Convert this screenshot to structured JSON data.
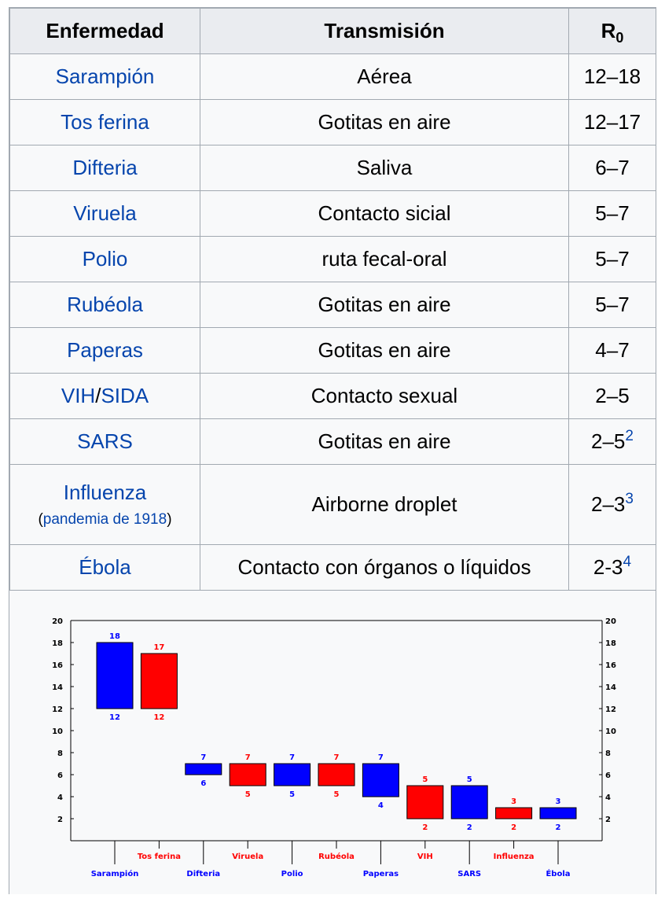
{
  "table": {
    "headers": {
      "disease": "Enfermedad",
      "transmission": "Transmisión",
      "r0_main": "R",
      "r0_sub": "0"
    },
    "rows": [
      {
        "disease": "Sarampión",
        "transmission": "Aérea",
        "r0": "12–18",
        "ref": ""
      },
      {
        "disease": "Tos ferina",
        "transmission": "Gotitas en aire",
        "r0": "12–17",
        "ref": ""
      },
      {
        "disease": "Difteria",
        "transmission": "Saliva",
        "r0": "6–7",
        "ref": ""
      },
      {
        "disease": "Viruela",
        "transmission": "Contacto sicial",
        "r0": "5–7",
        "ref": ""
      },
      {
        "disease": "Polio",
        "transmission": "ruta fecal-oral",
        "r0": "5–7",
        "ref": ""
      },
      {
        "disease": "Rubéola",
        "transmission": "Gotitas en aire",
        "r0": "5–7",
        "ref": ""
      },
      {
        "disease": "Paperas",
        "transmission": "Gotitas en aire",
        "r0": "4–7",
        "ref": ""
      },
      {
        "disease_part1": "VIH",
        "disease_sep": "/",
        "disease_part2": "SIDA",
        "transmission": "Contacto sexual",
        "r0": "2–5",
        "ref": ""
      },
      {
        "disease": "SARS",
        "transmission": "Gotitas en aire",
        "r0": "2–5",
        "ref": "2"
      },
      {
        "disease": "Influenza",
        "open": "(",
        "note": "pandemia de 1918",
        "close": ")",
        "transmission": "Airborne droplet",
        "r0": "2–3",
        "ref": "3"
      },
      {
        "disease": "Ébola",
        "transmission": "Contacto con órganos o líquidos",
        "r0": "2-3",
        "ref": "4"
      }
    ]
  },
  "chart_data": {
    "type": "bar",
    "title": "",
    "xlabel": "",
    "ylabel": "",
    "ylim": [
      0,
      20
    ],
    "yticks": [
      "2",
      "4",
      "6",
      "8",
      "10",
      "12",
      "14",
      "16",
      "18",
      "20"
    ],
    "grid": false,
    "colors": {
      "blue": "#0000ff",
      "red": "#ff0000",
      "axis": "#000000"
    },
    "bars": [
      {
        "category": "Sarampión",
        "low": 12,
        "high": 18,
        "color": "blue",
        "low_label": "12",
        "high_label": "18"
      },
      {
        "category": "Tos ferina",
        "low": 12,
        "high": 17,
        "color": "red",
        "low_label": "12",
        "high_label": "17"
      },
      {
        "category": "Difteria",
        "low": 6,
        "high": 7,
        "color": "blue",
        "low_label": "6",
        "high_label": "7"
      },
      {
        "category": "Viruela",
        "low": 5,
        "high": 7,
        "color": "red",
        "low_label": "5",
        "high_label": "7"
      },
      {
        "category": "Polio",
        "low": 5,
        "high": 7,
        "color": "blue",
        "low_label": "5",
        "high_label": "7"
      },
      {
        "category": "Rubéola",
        "low": 5,
        "high": 7,
        "color": "red",
        "low_label": "5",
        "high_label": "7"
      },
      {
        "category": "Paperas",
        "low": 4,
        "high": 7,
        "color": "blue",
        "low_label": "4",
        "high_label": "7"
      },
      {
        "category": "VIH",
        "low": 2,
        "high": 5,
        "color": "red",
        "low_label": "2",
        "high_label": "5"
      },
      {
        "category": "SARS",
        "low": 2,
        "high": 5,
        "color": "blue",
        "low_label": "2",
        "high_label": "5"
      },
      {
        "category": "Influenza",
        "low": 2,
        "high": 3,
        "color": "red",
        "low_label": "2",
        "high_label": "3"
      },
      {
        "category": "Ébola",
        "low": 2,
        "high": 3,
        "color": "blue",
        "low_label": "2",
        "high_label": "3"
      }
    ]
  }
}
